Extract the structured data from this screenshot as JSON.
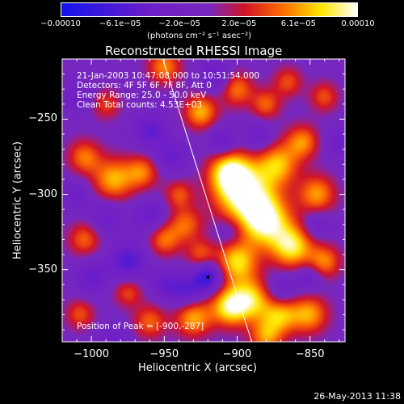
{
  "colorbar": {
    "ticks": [
      "−0.00010",
      "−6.1e−05",
      "−2.0e−05",
      "2.0e−05",
      "6.1e−05",
      "0.00010"
    ],
    "unit": "(photons cm⁻² s⁻¹ asec⁻²)",
    "range": [
      -0.0001,
      0.0001
    ]
  },
  "chart_data": {
    "type": "heatmap",
    "title": "Reconstructed RHESSI Image",
    "xlabel": "Heliocentric X (arcsec)",
    "ylabel": "Heliocentric Y (arcsec)",
    "xlim": [
      -1020,
      -826
    ],
    "ylim": [
      -398,
      -210
    ],
    "x_ticks": [
      "−1000",
      "−950",
      "−900",
      "−850"
    ],
    "x_tick_values": [
      -1000,
      -950,
      -900,
      -850
    ],
    "y_ticks": [
      "−250",
      "−300",
      "−350"
    ],
    "y_tick_values": [
      -250,
      -300,
      -350
    ],
    "limb_line": [
      [
        -951,
        -210
      ],
      [
        -890,
        -398
      ]
    ],
    "peak_marker": [
      -920,
      -355
    ],
    "info_lines": [
      "21-Jan-2003 10:47:08.000 to 10:51:54.000",
      "Detectors: 4F 5F 6F 7F 8F, Att 0",
      "Energy Range: 25.0 - 50.0 keV",
      "Clean     Total counts: 4.53E+03"
    ],
    "peak_text": "Position of Peak = [-900,-287]",
    "blobs": [
      {
        "x": -895,
        "y": -300,
        "v": 1.0,
        "s": 14
      },
      {
        "x": -880,
        "y": -318,
        "v": 0.95,
        "s": 12
      },
      {
        "x": -862,
        "y": -335,
        "v": 0.85,
        "s": 10
      },
      {
        "x": -905,
        "y": -285,
        "v": 0.85,
        "s": 10
      },
      {
        "x": -872,
        "y": -280,
        "v": 0.7,
        "s": 10
      },
      {
        "x": -855,
        "y": -265,
        "v": 0.6,
        "s": 8
      },
      {
        "x": -845,
        "y": -300,
        "v": 0.65,
        "s": 9
      },
      {
        "x": -840,
        "y": -345,
        "v": 0.6,
        "s": 8
      },
      {
        "x": -900,
        "y": -345,
        "v": 0.8,
        "s": 10
      },
      {
        "x": -905,
        "y": -375,
        "v": 0.85,
        "s": 9
      },
      {
        "x": -890,
        "y": -370,
        "v": 0.75,
        "s": 10
      },
      {
        "x": -870,
        "y": -380,
        "v": 0.7,
        "s": 9
      },
      {
        "x": -850,
        "y": -380,
        "v": 0.65,
        "s": 9
      },
      {
        "x": -880,
        "y": -395,
        "v": 0.6,
        "s": 8
      },
      {
        "x": -930,
        "y": -382,
        "v": 0.7,
        "s": 9
      },
      {
        "x": -950,
        "y": -330,
        "v": 0.55,
        "s": 8
      },
      {
        "x": -935,
        "y": -320,
        "v": 0.5,
        "s": 8
      },
      {
        "x": -925,
        "y": -340,
        "v": 0.45,
        "s": 7
      },
      {
        "x": -985,
        "y": -290,
        "v": 0.7,
        "s": 10
      },
      {
        "x": -965,
        "y": -285,
        "v": 0.55,
        "s": 8
      },
      {
        "x": -1005,
        "y": -275,
        "v": 0.55,
        "s": 8
      },
      {
        "x": -1005,
        "y": -330,
        "v": 0.5,
        "s": 8
      },
      {
        "x": -975,
        "y": -365,
        "v": 0.45,
        "s": 7
      },
      {
        "x": -960,
        "y": -385,
        "v": 0.5,
        "s": 8
      },
      {
        "x": -1008,
        "y": -380,
        "v": 0.45,
        "s": 7
      },
      {
        "x": -925,
        "y": -245,
        "v": 0.7,
        "s": 8
      },
      {
        "x": -950,
        "y": -215,
        "v": 0.6,
        "s": 8
      },
      {
        "x": -900,
        "y": -230,
        "v": 0.55,
        "s": 8
      },
      {
        "x": -880,
        "y": -240,
        "v": 0.5,
        "s": 7
      },
      {
        "x": -865,
        "y": -225,
        "v": 0.45,
        "s": 7
      },
      {
        "x": -840,
        "y": -235,
        "v": 0.45,
        "s": 7
      },
      {
        "x": -990,
        "y": -240,
        "v": 0.4,
        "s": 7
      },
      {
        "x": -940,
        "y": -300,
        "v": 0.45,
        "s": 7
      },
      {
        "x": -960,
        "y": -258,
        "v": -0.45,
        "s": 8
      },
      {
        "x": -945,
        "y": -275,
        "v": -0.4,
        "s": 8
      },
      {
        "x": -975,
        "y": -345,
        "v": -0.55,
        "s": 9
      },
      {
        "x": -960,
        "y": -315,
        "v": -0.4,
        "s": 8
      },
      {
        "x": -990,
        "y": -315,
        "v": -0.35,
        "s": 8
      },
      {
        "x": -920,
        "y": -355,
        "v": -0.75,
        "s": 7
      },
      {
        "x": -935,
        "y": -365,
        "v": -0.5,
        "s": 8
      },
      {
        "x": -1000,
        "y": -355,
        "v": -0.4,
        "s": 8
      },
      {
        "x": -910,
        "y": -265,
        "v": -0.45,
        "s": 7
      },
      {
        "x": -915,
        "y": -222,
        "v": -0.45,
        "s": 7
      },
      {
        "x": -885,
        "y": -262,
        "v": -0.35,
        "s": 7
      },
      {
        "x": -870,
        "y": -365,
        "v": -0.4,
        "s": 8
      },
      {
        "x": -850,
        "y": -355,
        "v": -0.35,
        "s": 7
      },
      {
        "x": -905,
        "y": -325,
        "v": -0.3,
        "s": 7
      },
      {
        "x": -1010,
        "y": -300,
        "v": -0.3,
        "s": 7
      },
      {
        "x": -1010,
        "y": -235,
        "v": -0.3,
        "s": 7
      },
      {
        "x": -950,
        "y": -360,
        "v": -0.35,
        "s": 7
      },
      {
        "x": -985,
        "y": -395,
        "v": -0.3,
        "s": 7
      },
      {
        "x": -845,
        "y": -320,
        "v": -0.3,
        "s": 7
      },
      {
        "x": -830,
        "y": -265,
        "v": -0.3,
        "s": 7
      }
    ]
  },
  "footer": {
    "timestamp": "26-May-2013 11:38"
  }
}
